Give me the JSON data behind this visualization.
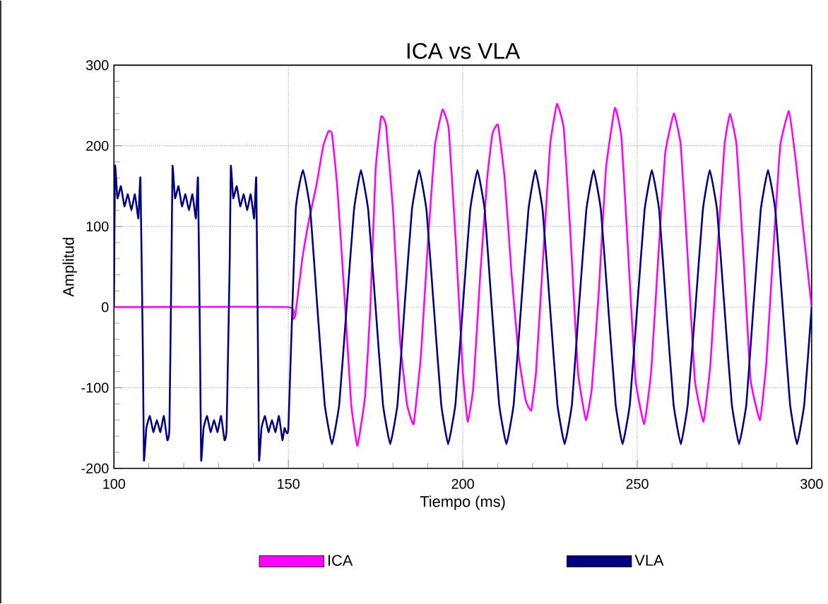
{
  "chart_data": {
    "type": "line",
    "title": "ICA vs VLA",
    "xlabel": "Tiempo (ms)",
    "ylabel": "Amplitud",
    "xlim": [
      100,
      300
    ],
    "xticks": [
      100,
      150,
      200,
      250,
      300
    ],
    "ylim": [
      -200,
      300
    ],
    "yticks": [
      -200,
      -100,
      0,
      100,
      200,
      300
    ],
    "grid": true,
    "legend": "bottom",
    "line_style": "solid",
    "marker": "none",
    "series": [
      {
        "name": "ICA",
        "color": "#ff00ff",
        "x": [
          100,
          150,
          151,
          152,
          154,
          156,
          158,
          160,
          161.5,
          162.5,
          164,
          166,
          168,
          169.8,
          172,
          173.5,
          175,
          176.6,
          178,
          180,
          182,
          184,
          185.9,
          188,
          190,
          192,
          194.2,
          196,
          198,
          200,
          201.4,
          203,
          205,
          207,
          208.5,
          210.1,
          212,
          214,
          216,
          218,
          219.6,
          221,
          223,
          225,
          227,
          229,
          231,
          233,
          235.3,
          237,
          239,
          241,
          243.6,
          245.5,
          247.5,
          249.5,
          252,
          254,
          256,
          258,
          260.5,
          262.5,
          264.5,
          266.5,
          269,
          271,
          273,
          275,
          276.6,
          278.5,
          280.5,
          282.5,
          285.2,
          287,
          289,
          291,
          293.5,
          295.5,
          297.5,
          300
        ],
        "values": [
          0,
          0,
          -15,
          -10,
          60,
          110,
          150,
          200,
          218,
          215,
          150,
          20,
          -120,
          -172,
          -110,
          0,
          170,
          236,
          225,
          120,
          -40,
          -120,
          -145,
          -60,
          80,
          200,
          245,
          220,
          80,
          -80,
          -142,
          -100,
          40,
          160,
          215,
          226,
          160,
          40,
          -60,
          -115,
          -128,
          -80,
          60,
          200,
          252,
          220,
          80,
          -80,
          -140,
          -100,
          20,
          170,
          247,
          210,
          60,
          -90,
          -145,
          -80,
          60,
          190,
          240,
          200,
          60,
          -90,
          -142,
          -70,
          70,
          200,
          240,
          200,
          60,
          -90,
          -140,
          -70,
          70,
          200,
          243,
          180,
          100,
          0
        ]
      },
      {
        "name": "VLA",
        "color": "#000080",
        "x": [
          100,
          100.3,
          101,
          102,
          103,
          104,
          105,
          106,
          107,
          107.6,
          108.3,
          108.6,
          109.3,
          110.3,
          111.3,
          112.3,
          113.3,
          114.3,
          115.3,
          115.9,
          116.5,
          116.8,
          117.5,
          118.5,
          119.5,
          120.5,
          121.5,
          122.5,
          123.5,
          124.1,
          124.7,
          125,
          125.7,
          126.7,
          127.7,
          128.7,
          129.7,
          130.7,
          131.7,
          132.3,
          133.2,
          133.5,
          134.2,
          135.2,
          136.2,
          137.2,
          138.2,
          139.2,
          140.2,
          140.8,
          141.3,
          141.6,
          142.3,
          143.3,
          144.3,
          145.3,
          146.3,
          147.3,
          148.3,
          148.9,
          150,
          152.1,
          154.2,
          156.3,
          158.3,
          160.4,
          162.5,
          164.6,
          166.7,
          168.8,
          170.8,
          172.9,
          175,
          177.1,
          179.2,
          181.3,
          183.3,
          185.4,
          187.5,
          189.6,
          191.7,
          193.8,
          195.8,
          197.9,
          200,
          202.1,
          204.2,
          206.3,
          208.3,
          210.4,
          212.5,
          214.6,
          216.7,
          218.8,
          220.8,
          222.9,
          225,
          227.1,
          229.2,
          231.3,
          233.3,
          235.4,
          237.5,
          239.6,
          241.7,
          243.8,
          245.8,
          247.9,
          250,
          252.1,
          254.2,
          256.3,
          258.3,
          260.4,
          262.5,
          264.5,
          266.7,
          268.8,
          270.8,
          272.9,
          275,
          277.1,
          279.2,
          281.3,
          283.3,
          285.4,
          287.5,
          289.6,
          291.7,
          293.8,
          295.8,
          297.9,
          300
        ],
        "values": [
          0,
          175,
          135,
          150,
          125,
          140,
          120,
          140,
          110,
          160,
          -60,
          -190,
          -150,
          -135,
          -155,
          -140,
          -155,
          -135,
          -165,
          -150,
          60,
          175,
          135,
          150,
          125,
          140,
          120,
          140,
          110,
          160,
          -60,
          -190,
          -150,
          -135,
          -155,
          -140,
          -155,
          -135,
          -165,
          -150,
          60,
          175,
          135,
          150,
          125,
          140,
          120,
          140,
          110,
          160,
          -60,
          -190,
          -150,
          -135,
          -155,
          -140,
          -155,
          -135,
          -165,
          -150,
          -150,
          120,
          170,
          120,
          0,
          -120,
          -170,
          -120,
          0,
          120,
          170,
          120,
          0,
          -120,
          -170,
          -120,
          0,
          120,
          170,
          120,
          0,
          -120,
          -170,
          -120,
          0,
          120,
          170,
          120,
          0,
          -120,
          -170,
          -120,
          0,
          120,
          170,
          120,
          0,
          -120,
          -170,
          -120,
          0,
          120,
          170,
          120,
          0,
          -120,
          -170,
          -120,
          0,
          120,
          170,
          120,
          0,
          -120,
          -170,
          -120,
          0,
          120,
          170,
          120,
          0,
          -120,
          -170,
          -120,
          0,
          120,
          170,
          120,
          0,
          -120,
          -170,
          -120,
          0
        ]
      }
    ]
  }
}
